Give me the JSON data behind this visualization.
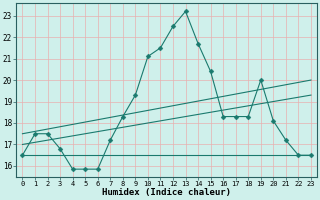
{
  "title": "",
  "xlabel": "Humidex (Indice chaleur)",
  "bg_color": "#cff0eb",
  "line_color": "#1a7a6e",
  "grid_color": "#e8b0b0",
  "xlim": [
    -0.5,
    23.5
  ],
  "ylim": [
    15.5,
    23.6
  ],
  "xticks": [
    0,
    1,
    2,
    3,
    4,
    5,
    6,
    7,
    8,
    9,
    10,
    11,
    12,
    13,
    14,
    15,
    16,
    17,
    18,
    19,
    20,
    21,
    22,
    23
  ],
  "yticks": [
    16,
    17,
    18,
    19,
    20,
    21,
    22,
    23
  ],
  "series1_x": [
    0,
    1,
    2,
    3,
    4,
    5,
    6,
    7,
    8,
    9,
    10,
    11,
    12,
    13,
    14,
    15,
    16,
    17,
    18,
    19,
    20,
    21,
    22,
    23
  ],
  "series1_y": [
    16.5,
    17.5,
    17.5,
    16.8,
    15.85,
    15.85,
    15.85,
    17.2,
    18.3,
    19.3,
    21.1,
    21.5,
    22.5,
    23.2,
    21.7,
    20.4,
    18.3,
    18.3,
    18.3,
    20.0,
    18.1,
    17.2,
    16.5,
    16.5
  ],
  "series2_x": [
    0,
    23
  ],
  "series2_y": [
    16.5,
    16.5
  ],
  "series3_x": [
    0,
    23
  ],
  "series3_y": [
    17.0,
    19.3
  ],
  "series4_x": [
    0,
    23
  ],
  "series4_y": [
    17.5,
    20.0
  ]
}
